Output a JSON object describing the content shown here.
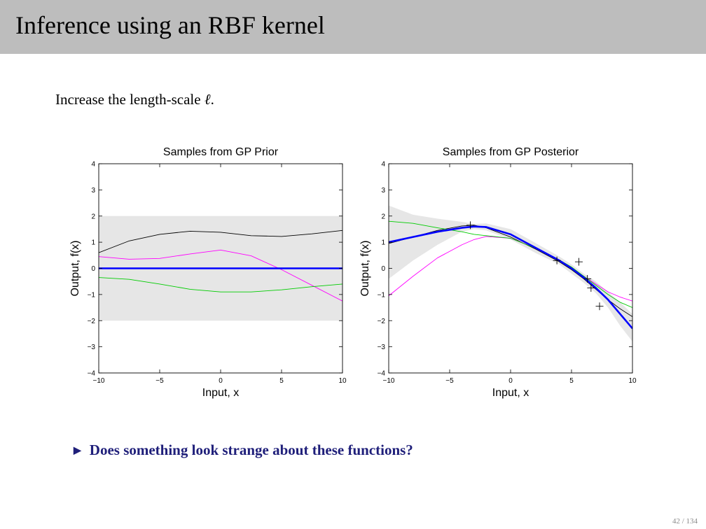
{
  "slide": {
    "title": "Inference using an RBF kernel",
    "intro_text": "Increase the length-scale ",
    "intro_symbol": "ℓ",
    "intro_end": ".",
    "bullet_marker": "▶",
    "bullet_text": "Does something look strange about these functions?",
    "page_number": "42 / 134"
  },
  "colors": {
    "title_bar": "#bdbdbd",
    "band": "#e6e6e6",
    "mean": "#0000ff",
    "sample_black": "#000000",
    "sample_magenta": "#ff00ff",
    "sample_green": "#00cc00",
    "bullet": "#1f1f7a"
  },
  "chart_data": [
    {
      "type": "line",
      "title": "Samples from GP Prior",
      "xlabel": "Input, x",
      "ylabel": "Output, f(x)",
      "xlim": [
        -10,
        10
      ],
      "ylim": [
        -4,
        4
      ],
      "xticks": [
        -10,
        -5,
        0,
        5,
        10
      ],
      "yticks": [
        -4,
        -3,
        -2,
        -1,
        0,
        1,
        2,
        3,
        4
      ],
      "grid": false,
      "band": {
        "x": [
          -10,
          10
        ],
        "lower": [
          -2,
          -2
        ],
        "upper": [
          2,
          2
        ]
      },
      "series": [
        {
          "color": "black",
          "x": [
            -10,
            -7.5,
            -5,
            -2.5,
            0,
            2.5,
            5,
            7.5,
            10
          ],
          "y": [
            0.6,
            1.05,
            1.3,
            1.42,
            1.38,
            1.25,
            1.22,
            1.32,
            1.45
          ]
        },
        {
          "color": "magenta",
          "x": [
            -10,
            -7.5,
            -5,
            -2.5,
            0,
            2.5,
            5,
            7.5,
            10
          ],
          "y": [
            0.45,
            0.35,
            0.38,
            0.55,
            0.7,
            0.48,
            -0.05,
            -0.65,
            -1.25
          ]
        },
        {
          "color": "green",
          "x": [
            -10,
            -7.5,
            -5,
            -2.5,
            0,
            2.5,
            5,
            7.5,
            10
          ],
          "y": [
            -0.35,
            -0.42,
            -0.6,
            -0.8,
            -0.9,
            -0.9,
            -0.82,
            -0.7,
            -0.6
          ]
        },
        {
          "color": "blue",
          "x": [
            -10,
            10
          ],
          "y": [
            0,
            0
          ]
        }
      ]
    },
    {
      "type": "line",
      "title": "Samples from GP Posterior",
      "xlabel": "Input, x",
      "ylabel": "Output, f(x)",
      "xlim": [
        -10,
        10
      ],
      "ylim": [
        -4,
        4
      ],
      "xticks": [
        -10,
        -5,
        0,
        5,
        10
      ],
      "yticks": [
        -4,
        -3,
        -2,
        -1,
        0,
        1,
        2,
        3,
        4
      ],
      "grid": false,
      "band": {
        "x": [
          -10,
          -8,
          -6,
          -4,
          -3,
          -2,
          0,
          2,
          4,
          5,
          6,
          7,
          8,
          9,
          10
        ],
        "lower": [
          -0.4,
          0.3,
          0.9,
          1.4,
          1.5,
          1.45,
          1.1,
          0.6,
          0.15,
          -0.2,
          -0.55,
          -0.95,
          -1.5,
          -2.2,
          -2.8
        ],
        "upper": [
          2.4,
          2.05,
          1.9,
          1.78,
          1.7,
          1.72,
          1.5,
          0.98,
          0.45,
          0.15,
          -0.2,
          -0.5,
          -0.9,
          -1.3,
          -1.75
        ]
      },
      "observations": {
        "x": [
          -3.3,
          3.8,
          5.6,
          6.3,
          6.6,
          7.3
        ],
        "y": [
          1.65,
          0.3,
          0.25,
          -0.4,
          -0.75,
          -1.45
        ]
      },
      "series": [
        {
          "color": "blue",
          "x": [
            -10,
            -8,
            -6,
            -4,
            -3,
            -2,
            0,
            2,
            4,
            5,
            6,
            7,
            8,
            9,
            10
          ],
          "y": [
            1.0,
            1.2,
            1.4,
            1.55,
            1.6,
            1.58,
            1.3,
            0.8,
            0.3,
            0.0,
            -0.35,
            -0.75,
            -1.2,
            -1.75,
            -2.3
          ]
        },
        {
          "color": "black",
          "x": [
            -10,
            -8,
            -6,
            -4,
            -3,
            -2,
            0,
            2,
            4,
            5,
            6,
            7,
            8,
            9,
            10
          ],
          "y": [
            0.95,
            1.2,
            1.45,
            1.62,
            1.65,
            1.55,
            1.2,
            0.75,
            0.25,
            -0.05,
            -0.4,
            -0.8,
            -1.2,
            -1.55,
            -1.85
          ]
        },
        {
          "color": "magenta",
          "x": [
            -10,
            -8,
            -6,
            -4,
            -3,
            -2,
            0,
            2,
            4,
            5,
            6,
            7,
            8,
            9,
            10
          ],
          "y": [
            -1.05,
            -0.3,
            0.4,
            0.9,
            1.1,
            1.22,
            1.15,
            0.8,
            0.3,
            0.0,
            -0.3,
            -0.6,
            -0.9,
            -1.1,
            -1.25
          ]
        },
        {
          "color": "green",
          "x": [
            -10,
            -8,
            -6,
            -4,
            -3,
            -2,
            0,
            2,
            4,
            5,
            6,
            7,
            8,
            9,
            10
          ],
          "y": [
            1.8,
            1.72,
            1.55,
            1.4,
            1.3,
            1.25,
            1.15,
            0.78,
            0.32,
            0.05,
            -0.3,
            -0.65,
            -1.0,
            -1.3,
            -1.5
          ]
        }
      ]
    }
  ]
}
